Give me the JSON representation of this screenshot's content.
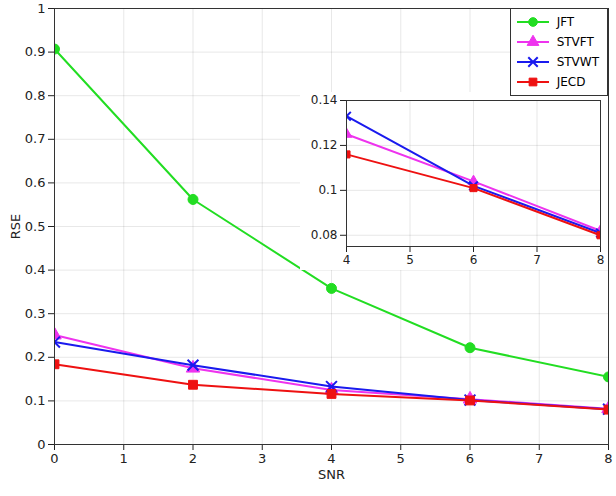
{
  "chart_data": [
    {
      "type": "line",
      "x_label": "SNR",
      "y_label": "RSE",
      "x": [
        0,
        2,
        4,
        6,
        8
      ],
      "series": [
        {
          "name": "JFT",
          "color": "#22dd22",
          "marker": "circle",
          "values": [
            0.907,
            0.562,
            0.358,
            0.222,
            0.155
          ]
        },
        {
          "name": "STVFT",
          "color": "#ee33ee",
          "marker": "triangle",
          "values": [
            0.251,
            0.175,
            0.125,
            0.104,
            0.082
          ]
        },
        {
          "name": "STVWT",
          "color": "#1a1aee",
          "marker": "times",
          "values": [
            0.235,
            0.182,
            0.133,
            0.102,
            0.081
          ]
        },
        {
          "name": "JECD",
          "color": "#ee1111",
          "marker": "square",
          "values": [
            0.184,
            0.137,
            0.116,
            0.101,
            0.08
          ]
        }
      ],
      "xlim": [
        0,
        8
      ],
      "xticks": [
        0,
        1,
        2,
        3,
        4,
        5,
        6,
        7,
        8
      ],
      "ylim": [
        0,
        1
      ],
      "yticks": [
        0,
        0.1,
        0.2,
        0.3,
        0.4,
        0.5,
        0.6,
        0.7,
        0.8,
        0.9,
        1
      ],
      "grid": true,
      "legend": "top-right"
    },
    {
      "type": "line",
      "x": [
        4,
        6,
        8
      ],
      "series": [
        {
          "name": "STVFT",
          "color": "#ee33ee",
          "marker": "triangle",
          "values": [
            0.125,
            0.104,
            0.082
          ]
        },
        {
          "name": "STVWT",
          "color": "#1a1aee",
          "marker": "times",
          "values": [
            0.133,
            0.102,
            0.081
          ]
        },
        {
          "name": "JECD",
          "color": "#ee1111",
          "marker": "square",
          "values": [
            0.116,
            0.101,
            0.08
          ]
        }
      ],
      "xlim": [
        4,
        8
      ],
      "xticks": [
        4,
        5,
        6,
        7,
        8
      ],
      "ylim": [
        0.075,
        0.14
      ],
      "yticks": [
        0.08,
        0.1,
        0.12,
        0.14
      ],
      "grid": true
    }
  ]
}
